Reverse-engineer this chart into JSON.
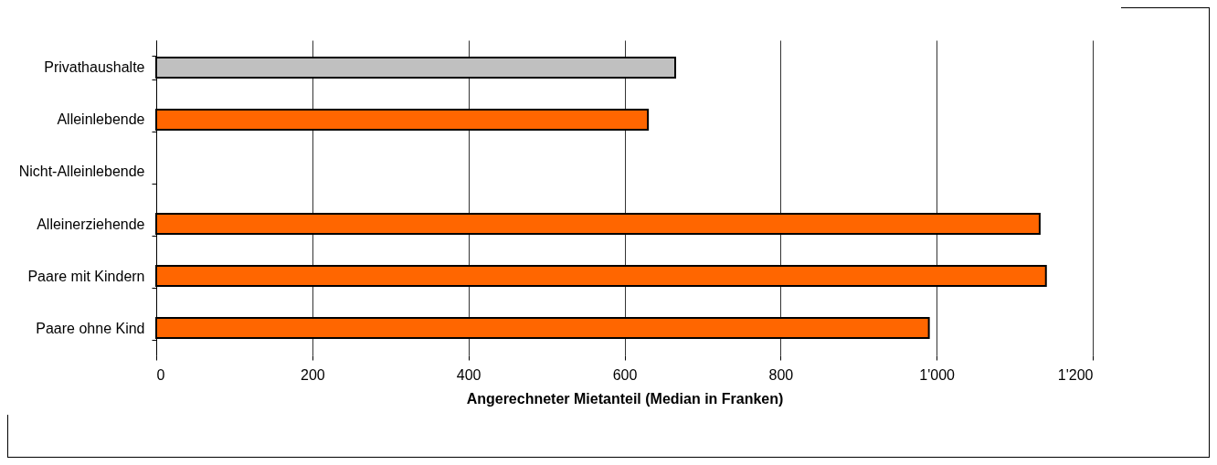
{
  "chart_data": {
    "type": "bar",
    "orientation": "horizontal",
    "xlabel": "Angerechneter Mietanteil (Median in Franken)",
    "categories": [
      "Privathaushalte",
      "Alleinlebende",
      "Nicht-Alleinlebende",
      "Alleinerziehende",
      "Paare mit Kindern",
      "Paare ohne Kind"
    ],
    "values": [
      665,
      630,
      null,
      1132,
      1140,
      990
    ],
    "colors": [
      "#c0c0c0",
      "#ff6600",
      "#ff6600",
      "#ff6600",
      "#ff6600",
      "#ff6600"
    ],
    "xlim": [
      0,
      1200
    ],
    "xticks": [
      0,
      200,
      400,
      600,
      800,
      {
        "value": 1000,
        "label": "1'000"
      },
      {
        "value": 1200,
        "label": "1'200"
      }
    ],
    "grid": "x"
  }
}
